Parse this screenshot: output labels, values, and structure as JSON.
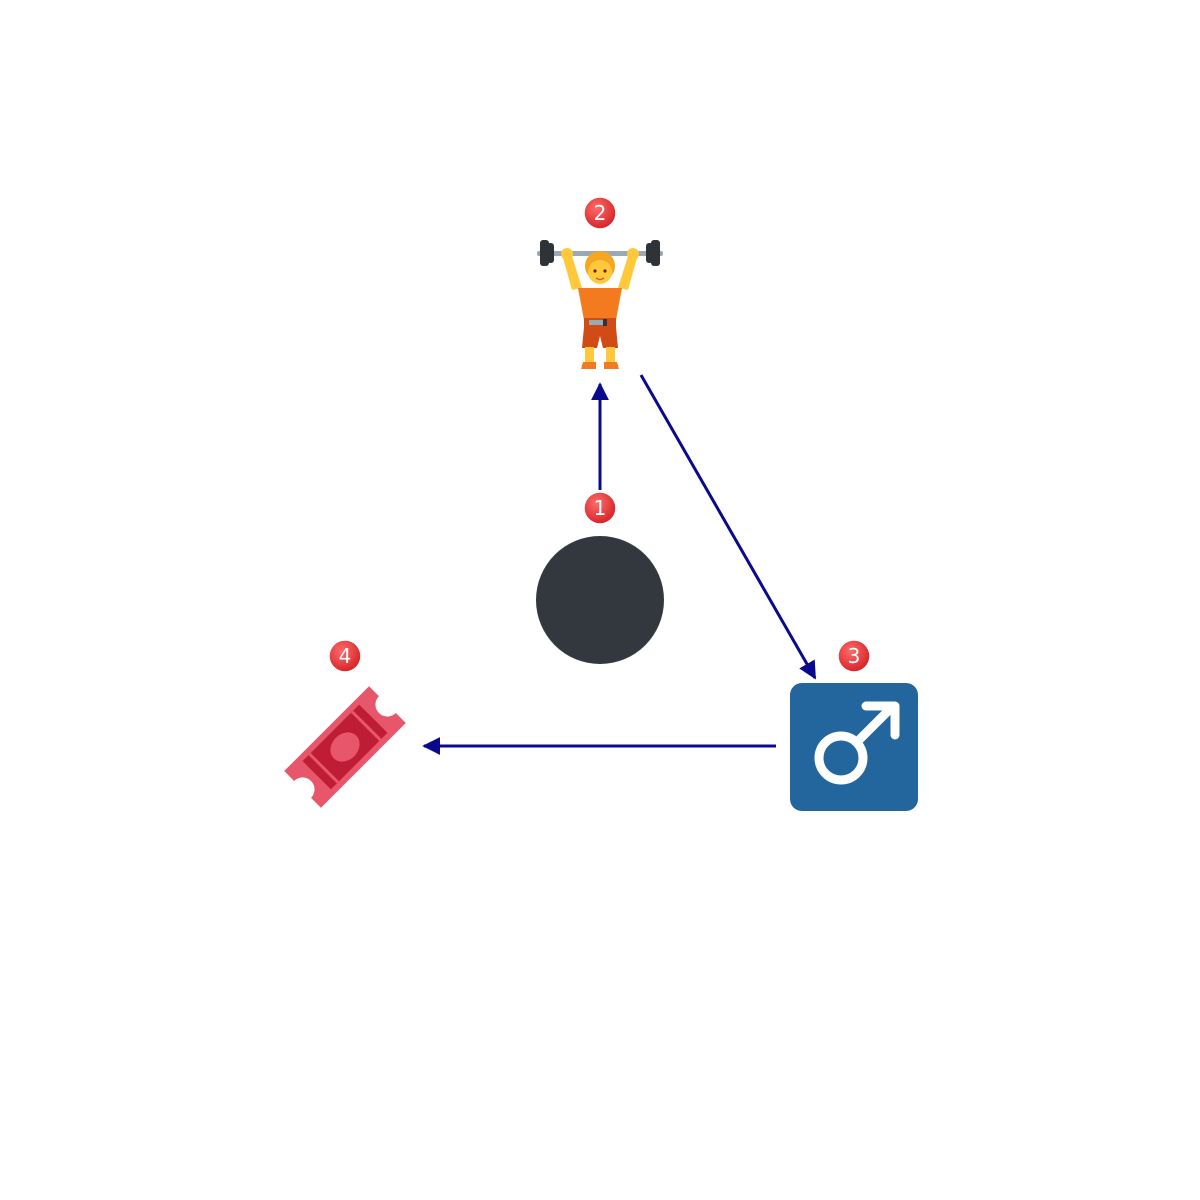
{
  "diagram": {
    "nodes": [
      {
        "id": "n1",
        "number": "1",
        "icon": "black-circle-icon"
      },
      {
        "id": "n2",
        "number": "2",
        "icon": "person-lifting-weights-icon"
      },
      {
        "id": "n3",
        "number": "3",
        "icon": "male-sign-icon"
      },
      {
        "id": "n4",
        "number": "4",
        "icon": "admission-ticket-icon"
      }
    ],
    "edges": [
      {
        "from": "n1",
        "to": "n2"
      },
      {
        "from": "n2",
        "to": "n3"
      },
      {
        "from": "n3",
        "to": "n4"
      }
    ],
    "colors": {
      "arrow": "#0a0a8c",
      "badge": "#e0282d",
      "circle": "#33373e",
      "male_sign_bg": "#22669d",
      "ticket_light": "#e8566b",
      "ticket_dark": "#bf1d36",
      "lifter_skin": "#ffc93b",
      "lifter_shirt": "#f47a20",
      "lifter_shorts": "#d14b17",
      "barbell": "#2f3338"
    }
  }
}
